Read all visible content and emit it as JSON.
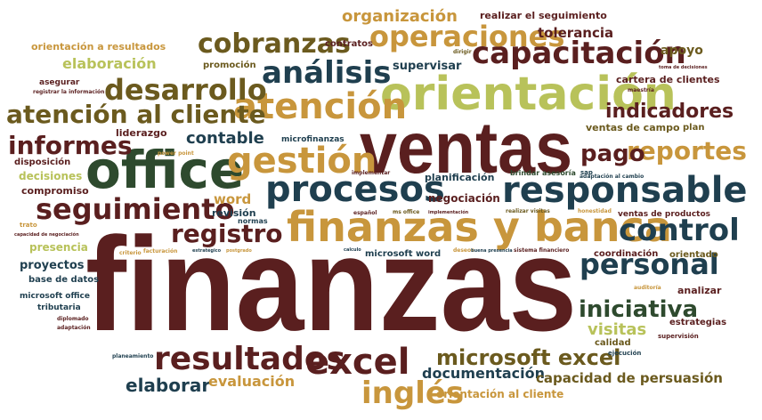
{
  "words": [
    {
      "text": "finanzas",
      "color": "#5a1f1f"
    },
    {
      "text": "ventas",
      "color": "#5a1f1f"
    },
    {
      "text": "office",
      "color": "#2e4a2e"
    },
    {
      "text": "orientación",
      "color": "#b8c25a"
    },
    {
      "text": "finanzas y banca",
      "color": "#c8963c"
    },
    {
      "text": "procesos",
      "color": "#1f3f4f"
    },
    {
      "text": "responsable",
      "color": "#1f3f4f"
    },
    {
      "text": "gestión",
      "color": "#c8963c"
    },
    {
      "text": "atención",
      "color": "#c8963c"
    },
    {
      "text": "excel",
      "color": "#5a1f1f"
    },
    {
      "text": "resultados",
      "color": "#5a1f1f"
    },
    {
      "text": "personal",
      "color": "#1f3f4f"
    },
    {
      "text": "control",
      "color": "#1f3f4f"
    },
    {
      "text": "capacitación",
      "color": "#5a1f1f"
    },
    {
      "text": "operaciones",
      "color": "#c8963c"
    },
    {
      "text": "análisis",
      "color": "#1f3f4f"
    },
    {
      "text": "desarrollo",
      "color": "#6b5a1e"
    },
    {
      "text": "seguimiento",
      "color": "#5a1f1f"
    },
    {
      "text": "cobranzas",
      "color": "#6b5a1e"
    },
    {
      "text": "atención al cliente",
      "color": "#6b5a1e"
    },
    {
      "text": "informes",
      "color": "#5a1f1f"
    },
    {
      "text": "inglés",
      "color": "#c8963c"
    },
    {
      "text": "microsoft excel",
      "color": "#6b5a1e"
    },
    {
      "text": "reportes",
      "color": "#c8963c"
    },
    {
      "text": "iniciativa",
      "color": "#2e4a2e"
    },
    {
      "text": "pago",
      "color": "#5a1f1f"
    },
    {
      "text": "registro",
      "color": "#5a1f1f"
    },
    {
      "text": "indicadores",
      "color": "#5a1f1f"
    },
    {
      "text": "elaborar",
      "color": "#1f3f4f"
    },
    {
      "text": "contable",
      "color": "#1f3f4f"
    },
    {
      "text": "organización",
      "color": "#c8963c"
    },
    {
      "text": "documentación",
      "color": "#1f3f4f"
    },
    {
      "text": "capacidad de persuasión",
      "color": "#6b5a1e"
    },
    {
      "text": "evaluación",
      "color": "#c8963c"
    },
    {
      "text": "visitas",
      "color": "#b8c25a"
    },
    {
      "text": "elaboración",
      "color": "#b8c25a"
    },
    {
      "text": "tolerancia",
      "color": "#5a1f1f"
    },
    {
      "text": "apoyo",
      "color": "#6b5a1e"
    },
    {
      "text": "supervisar",
      "color": "#1f3f4f"
    },
    {
      "text": "orientación a resultados",
      "color": "#c8963c"
    },
    {
      "text": "realizar el seguimiento",
      "color": "#5a1f1f"
    },
    {
      "text": "contratos",
      "color": "#5a1f1f"
    },
    {
      "text": "promoción",
      "color": "#6b5a1e"
    },
    {
      "text": "asegurar",
      "color": "#5a1f1f"
    },
    {
      "text": "registrar la información",
      "color": "#5a1f1f"
    },
    {
      "text": "dirigir",
      "color": "#6b5a1e"
    },
    {
      "text": "toma de decisiones",
      "color": "#5a1f1f"
    },
    {
      "text": "cartera de clientes",
      "color": "#5a1f1f"
    },
    {
      "text": "maestría",
      "color": "#5a1f1f"
    },
    {
      "text": "liderazgo",
      "color": "#5a1f1f"
    },
    {
      "text": "microfinanzas",
      "color": "#1f3f4f"
    },
    {
      "text": "ventas de campo",
      "color": "#6b5a1e"
    },
    {
      "text": "plan",
      "color": "#6b5a1e"
    },
    {
      "text": "disposición",
      "color": "#5a1f1f"
    },
    {
      "text": "power point",
      "color": "#c8963c"
    },
    {
      "text": "decisiones",
      "color": "#b8c25a"
    },
    {
      "text": "compromiso",
      "color": "#5a1f1f"
    },
    {
      "text": "implementar",
      "color": "#5a1f1f"
    },
    {
      "text": "planificación",
      "color": "#1f3f4f"
    },
    {
      "text": "brindar asesoría",
      "color": "#2e4a2e"
    },
    {
      "text": "sap",
      "color": "#1f3f4f"
    },
    {
      "text": "adaptación al cambio",
      "color": "#1f3f4f"
    },
    {
      "text": "word",
      "color": "#c8963c"
    },
    {
      "text": "revisión",
      "color": "#1f3f4f"
    },
    {
      "text": "negociación",
      "color": "#5a1f1f"
    },
    {
      "text": "normas",
      "color": "#1f3f4f"
    },
    {
      "text": "español",
      "color": "#5a1f1f"
    },
    {
      "text": "ms office",
      "color": "#6b5a1e"
    },
    {
      "text": "implementación",
      "color": "#5a1f1f"
    },
    {
      "text": "realizar visitas",
      "color": "#6b5a1e"
    },
    {
      "text": "honestidad",
      "color": "#c8963c"
    },
    {
      "text": "ventas de productos",
      "color": "#5a1f1f"
    },
    {
      "text": "trato",
      "color": "#c8963c"
    },
    {
      "text": "capacidad de negociación",
      "color": "#5a1f1f"
    },
    {
      "text": "presencia",
      "color": "#b8c25a"
    },
    {
      "text": "criterio",
      "color": "#c8963c"
    },
    {
      "text": "facturación",
      "color": "#c8963c"
    },
    {
      "text": "estratégico",
      "color": "#1f3f4f"
    },
    {
      "text": "postgrado",
      "color": "#c8963c"
    },
    {
      "text": "calculo",
      "color": "#1f3f4f"
    },
    {
      "text": "deseos",
      "color": "#c8963c"
    },
    {
      "text": "buena presencia",
      "color": "#1f3f4f"
    },
    {
      "text": "sistema financiero",
      "color": "#5a1f1f"
    },
    {
      "text": "coordinación",
      "color": "#5a1f1f"
    },
    {
      "text": "orientado",
      "color": "#6b5a1e"
    },
    {
      "text": "proyectos",
      "color": "#1f3f4f"
    },
    {
      "text": "microsoft word",
      "color": "#1f3f4f"
    },
    {
      "text": "base de datos",
      "color": "#1f3f4f"
    },
    {
      "text": "auditoría",
      "color": "#c8963c"
    },
    {
      "text": "analizar",
      "color": "#5a1f1f"
    },
    {
      "text": "microsoft office",
      "color": "#1f3f4f"
    },
    {
      "text": "tributaria",
      "color": "#1f3f4f"
    },
    {
      "text": "diplomado",
      "color": "#5a1f1f"
    },
    {
      "text": "adaptación",
      "color": "#5a1f1f"
    },
    {
      "text": "estrategias",
      "color": "#5a1f1f"
    },
    {
      "text": "calidad",
      "color": "#6b5a1e"
    },
    {
      "text": "supervisión",
      "color": "#5a1f1f"
    },
    {
      "text": "ejecución",
      "color": "#1f3f4f"
    },
    {
      "text": "planeamiento",
      "color": "#1f3f4f"
    },
    {
      "text": "orientación al cliente",
      "color": "#c8963c"
    }
  ]
}
